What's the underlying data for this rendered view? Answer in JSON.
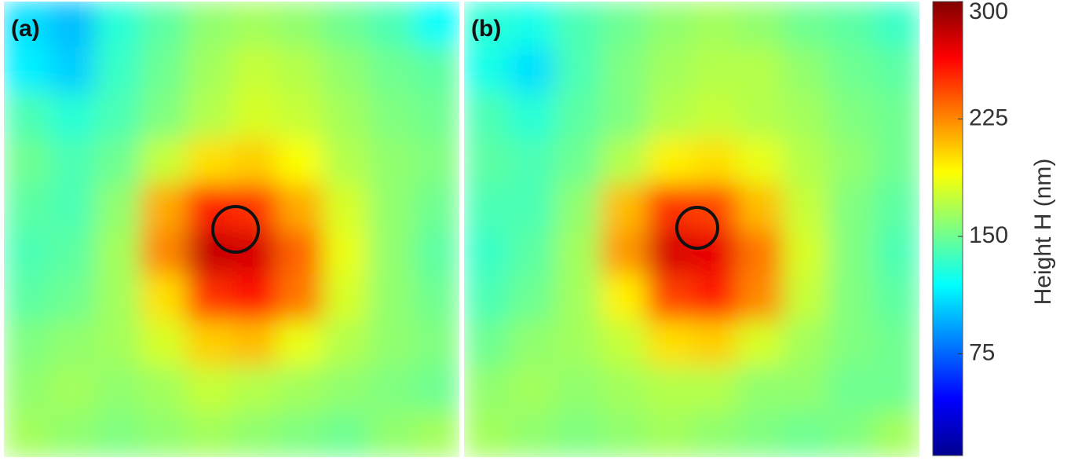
{
  "chart_data": [
    {
      "type": "heatmap",
      "label": "(a)",
      "z": [
        [
          110,
          100,
          130,
          145,
          160,
          165,
          160,
          150,
          140,
          120
        ],
        [
          115,
          105,
          135,
          150,
          165,
          175,
          170,
          160,
          150,
          145
        ],
        [
          140,
          130,
          140,
          155,
          170,
          180,
          175,
          165,
          155,
          150
        ],
        [
          150,
          140,
          150,
          175,
          200,
          205,
          190,
          170,
          160,
          155
        ],
        [
          145,
          140,
          160,
          215,
          255,
          250,
          215,
          180,
          160,
          150
        ],
        [
          140,
          145,
          165,
          225,
          280,
          275,
          235,
          185,
          160,
          145
        ],
        [
          145,
          150,
          165,
          200,
          250,
          260,
          230,
          180,
          160,
          150
        ],
        [
          155,
          160,
          165,
          180,
          205,
          210,
          185,
          170,
          160,
          155
        ],
        [
          160,
          165,
          160,
          165,
          175,
          170,
          165,
          160,
          155,
          150
        ],
        [
          165,
          160,
          155,
          160,
          165,
          160,
          155,
          150,
          160,
          165
        ]
      ]
    },
    {
      "type": "heatmap",
      "label": "(b)",
      "z": [
        [
          130,
          125,
          140,
          150,
          160,
          165,
          160,
          150,
          145,
          135
        ],
        [
          125,
          110,
          140,
          155,
          165,
          170,
          170,
          160,
          150,
          145
        ],
        [
          140,
          130,
          145,
          155,
          170,
          175,
          170,
          165,
          155,
          150
        ],
        [
          145,
          140,
          150,
          170,
          195,
          200,
          185,
          170,
          160,
          150
        ],
        [
          140,
          140,
          160,
          210,
          250,
          245,
          210,
          175,
          155,
          145
        ],
        [
          135,
          145,
          165,
          220,
          275,
          270,
          230,
          180,
          155,
          140
        ],
        [
          140,
          150,
          165,
          195,
          245,
          255,
          225,
          175,
          155,
          145
        ],
        [
          150,
          160,
          165,
          175,
          200,
          205,
          180,
          165,
          155,
          150
        ],
        [
          160,
          165,
          160,
          165,
          170,
          170,
          160,
          160,
          150,
          150
        ],
        [
          165,
          160,
          155,
          160,
          165,
          160,
          155,
          150,
          155,
          165
        ]
      ]
    },
    {
      "type": "colorbar",
      "label": "Height H (nm)",
      "colormap": "jet",
      "clim": [
        10,
        300
      ],
      "ticks": [
        75,
        150,
        225,
        300
      ]
    }
  ]
}
